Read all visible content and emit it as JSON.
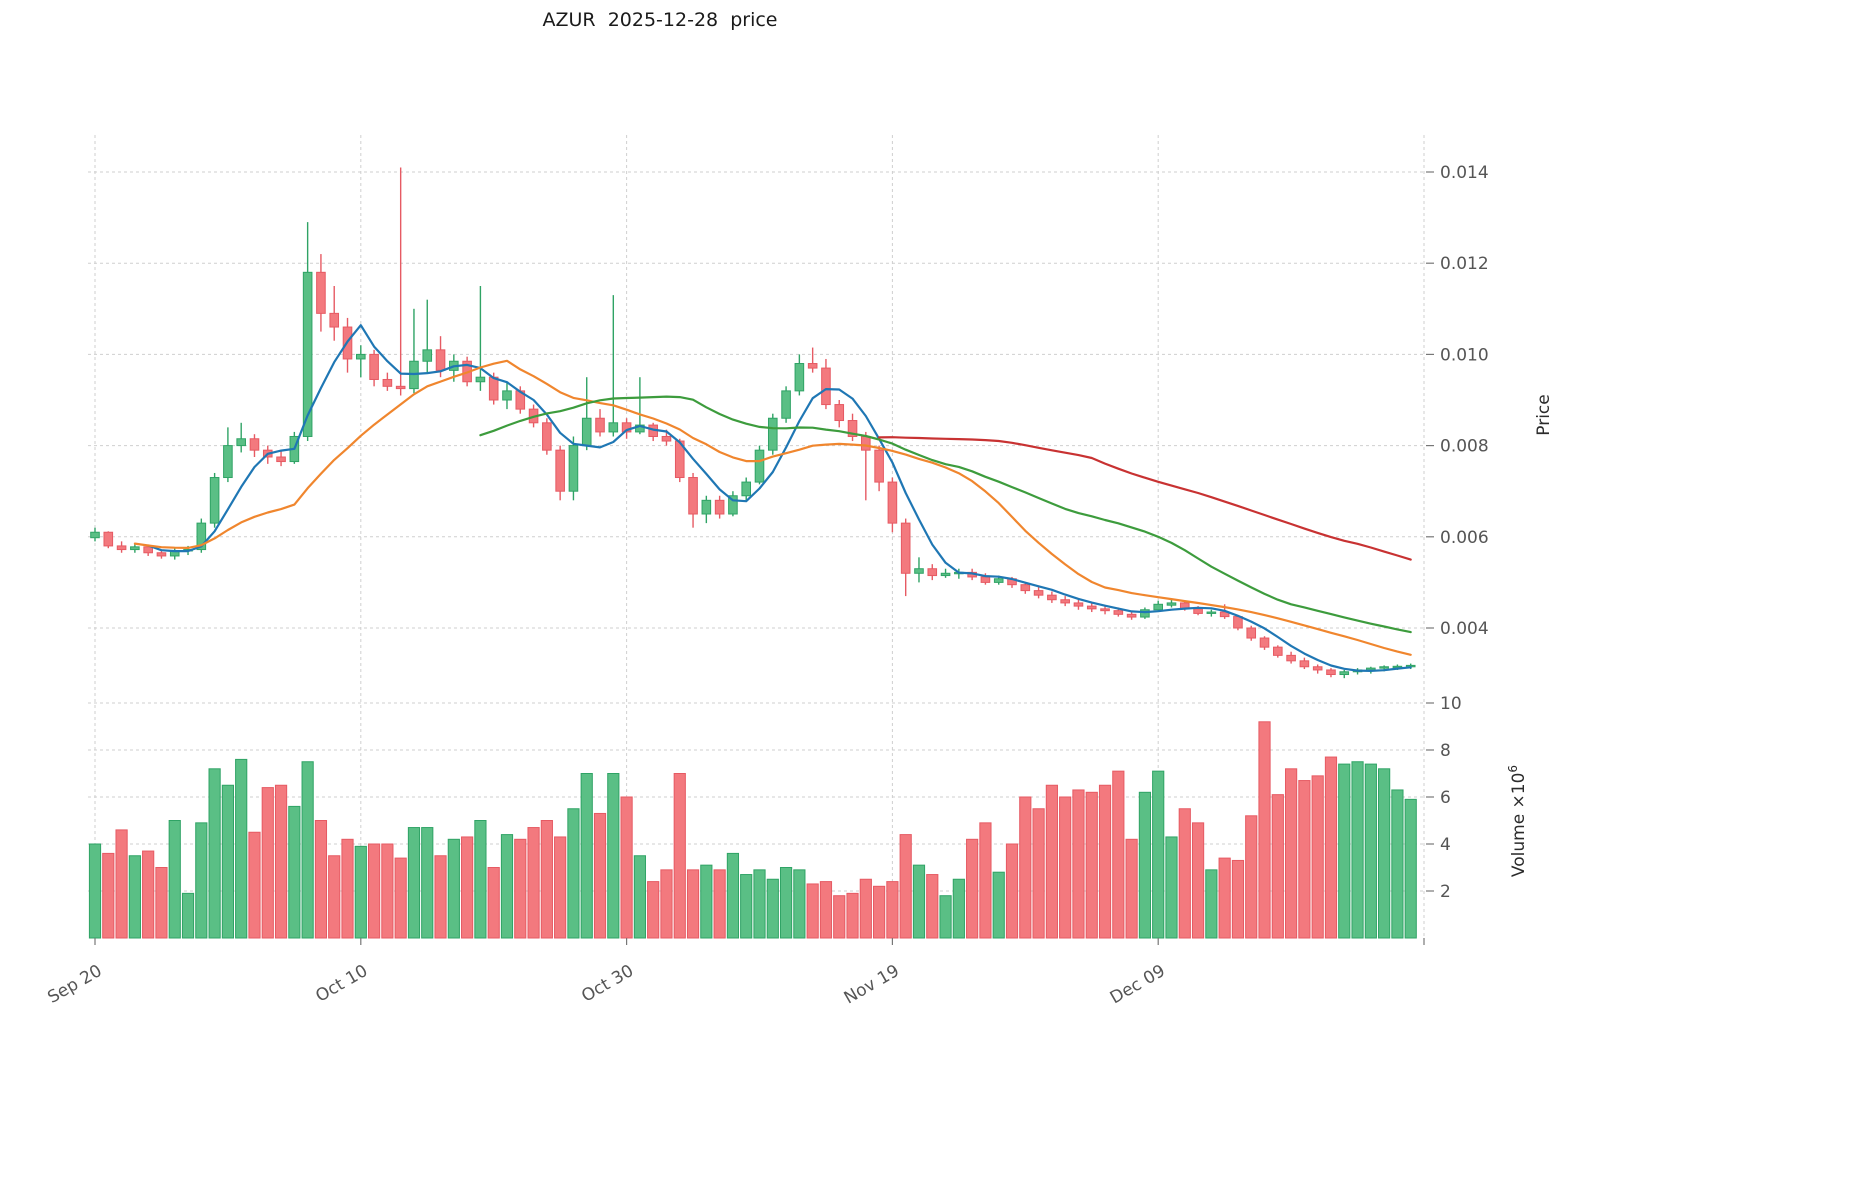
{
  "chart": {
    "title": "AZUR  2025-12-28  price"
  },
  "axes": {
    "price": {
      "label": "Price",
      "ticks": [
        0.004,
        0.006,
        0.008,
        0.01,
        0.012,
        0.014
      ],
      "tick_labels": [
        "0.004",
        "0.006",
        "0.008",
        "0.010",
        "0.012",
        "0.014"
      ]
    },
    "volume": {
      "label_text": "Volume ×10",
      "label_sup": "6",
      "ticks": [
        2,
        4,
        6,
        8,
        10
      ],
      "tick_labels": [
        "2",
        "4",
        "6",
        "8",
        "10"
      ]
    },
    "x": {
      "tick_indices": [
        0,
        20,
        40,
        60,
        80,
        100
      ],
      "tick_labels": [
        "Sep 20",
        "Oct 10",
        "Oct 30",
        "Nov 19",
        "Dec 09",
        ""
      ]
    }
  },
  "chart_data": {
    "type": "candlestick",
    "symbol": "AZUR",
    "date_range": [
      "Sep 20",
      "Dec 28"
    ],
    "price_ylim": [
      0.00264,
      0.01481
    ],
    "volume_ylim": [
      0,
      10.2
    ],
    "volume_unit": "1e6",
    "grid": true,
    "open": [
      0.00598,
      0.0061,
      0.0058,
      0.00572,
      0.00578,
      0.00565,
      0.00558,
      0.0057,
      0.00572,
      0.0063,
      0.0073,
      0.008,
      0.00815,
      0.0079,
      0.00775,
      0.00765,
      0.0082,
      0.0118,
      0.0109,
      0.0106,
      0.0099,
      0.01,
      0.00945,
      0.0093,
      0.00925,
      0.00985,
      0.0101,
      0.00965,
      0.00985,
      0.0094,
      0.0095,
      0.009,
      0.0092,
      0.0088,
      0.0085,
      0.0079,
      0.007,
      0.008,
      0.0086,
      0.0083,
      0.0085,
      0.0083,
      0.00845,
      0.0082,
      0.0081,
      0.0073,
      0.0065,
      0.0068,
      0.0065,
      0.0069,
      0.0072,
      0.0079,
      0.0086,
      0.0092,
      0.0098,
      0.0097,
      0.0089,
      0.00855,
      0.0082,
      0.0079,
      0.0072,
      0.0063,
      0.0052,
      0.0053,
      0.00515,
      0.0052,
      0.00522,
      0.00512,
      0.005,
      0.00508,
      0.00495,
      0.00482,
      0.00472,
      0.00462,
      0.00455,
      0.00448,
      0.00442,
      0.00438,
      0.0043,
      0.00424,
      0.0044,
      0.0045,
      0.00455,
      0.00442,
      0.00432,
      0.00435,
      0.00425,
      0.004,
      0.00378,
      0.00358,
      0.0034,
      0.00328,
      0.00315,
      0.00308,
      0.00298,
      0.00304,
      0.00308,
      0.00312,
      0.00315,
      0.00316
    ],
    "high": [
      0.0062,
      0.00612,
      0.0059,
      0.00585,
      0.0058,
      0.00572,
      0.00575,
      0.0058,
      0.0064,
      0.0074,
      0.0084,
      0.0085,
      0.00825,
      0.008,
      0.0079,
      0.0083,
      0.0129,
      0.0122,
      0.0115,
      0.0108,
      0.0102,
      0.0101,
      0.0096,
      0.0141,
      0.011,
      0.0112,
      0.0104,
      0.01,
      0.00995,
      0.0115,
      0.0096,
      0.0094,
      0.0093,
      0.0089,
      0.0086,
      0.008,
      0.0082,
      0.0095,
      0.0088,
      0.0113,
      0.0086,
      0.0095,
      0.0085,
      0.00835,
      0.00815,
      0.0074,
      0.0069,
      0.0069,
      0.007,
      0.0073,
      0.008,
      0.0087,
      0.0093,
      0.01,
      0.01015,
      0.0099,
      0.009,
      0.0087,
      0.0083,
      0.008,
      0.0073,
      0.0064,
      0.00555,
      0.0054,
      0.0053,
      0.0053,
      0.0053,
      0.0052,
      0.00515,
      0.00512,
      0.005,
      0.0049,
      0.0048,
      0.0047,
      0.00462,
      0.00455,
      0.0045,
      0.00445,
      0.00438,
      0.00445,
      0.0046,
      0.00462,
      0.00458,
      0.00448,
      0.0044,
      0.00452,
      0.00428,
      0.00405,
      0.00382,
      0.00362,
      0.00348,
      0.00335,
      0.0032,
      0.00312,
      0.00308,
      0.00312,
      0.00315,
      0.00318,
      0.0032,
      0.00322
    ],
    "low": [
      0.0059,
      0.00575,
      0.00565,
      0.00565,
      0.00558,
      0.00552,
      0.0055,
      0.0056,
      0.00565,
      0.0062,
      0.0072,
      0.00785,
      0.00775,
      0.0076,
      0.00755,
      0.0076,
      0.0081,
      0.0105,
      0.0103,
      0.0096,
      0.0095,
      0.0093,
      0.0092,
      0.0091,
      0.00915,
      0.0096,
      0.0095,
      0.0094,
      0.0093,
      0.0092,
      0.0089,
      0.0088,
      0.0087,
      0.0084,
      0.0078,
      0.0068,
      0.0068,
      0.0079,
      0.0082,
      0.0082,
      0.00815,
      0.00825,
      0.0081,
      0.008,
      0.0072,
      0.0062,
      0.0063,
      0.0064,
      0.00645,
      0.0068,
      0.00715,
      0.0078,
      0.0085,
      0.0091,
      0.0096,
      0.0088,
      0.0084,
      0.0081,
      0.0068,
      0.007,
      0.0061,
      0.0047,
      0.005,
      0.00505,
      0.0051,
      0.00508,
      0.00505,
      0.00495,
      0.00495,
      0.00488,
      0.00475,
      0.00465,
      0.00455,
      0.00448,
      0.0044,
      0.00435,
      0.0043,
      0.00425,
      0.00418,
      0.0042,
      0.00435,
      0.00445,
      0.00438,
      0.00428,
      0.00425,
      0.0042,
      0.00395,
      0.00372,
      0.00352,
      0.00335,
      0.00322,
      0.0031,
      0.003,
      0.00292,
      0.0029,
      0.00298,
      0.003,
      0.00305,
      0.00308,
      0.0031
    ],
    "close": [
      0.0061,
      0.0058,
      0.00572,
      0.00578,
      0.00565,
      0.00558,
      0.0057,
      0.00572,
      0.0063,
      0.0073,
      0.008,
      0.00815,
      0.0079,
      0.00775,
      0.00765,
      0.0082,
      0.0118,
      0.0109,
      0.0106,
      0.0099,
      0.01,
      0.00945,
      0.0093,
      0.00925,
      0.00985,
      0.0101,
      0.00965,
      0.00985,
      0.0094,
      0.0095,
      0.009,
      0.0092,
      0.0088,
      0.0085,
      0.0079,
      0.007,
      0.008,
      0.0086,
      0.0083,
      0.0085,
      0.0083,
      0.00845,
      0.0082,
      0.0081,
      0.0073,
      0.0065,
      0.0068,
      0.0065,
      0.0069,
      0.0072,
      0.0079,
      0.0086,
      0.0092,
      0.0098,
      0.0097,
      0.0089,
      0.00855,
      0.0082,
      0.0079,
      0.0072,
      0.0063,
      0.0052,
      0.0053,
      0.00515,
      0.0052,
      0.00522,
      0.00512,
      0.005,
      0.00508,
      0.00495,
      0.00482,
      0.00472,
      0.00462,
      0.00455,
      0.00448,
      0.00442,
      0.00438,
      0.0043,
      0.00424,
      0.0044,
      0.00452,
      0.00455,
      0.00442,
      0.00432,
      0.00435,
      0.00425,
      0.004,
      0.00378,
      0.00358,
      0.0034,
      0.00328,
      0.00315,
      0.00308,
      0.00298,
      0.00304,
      0.00308,
      0.00312,
      0.00315,
      0.00316,
      0.00318
    ],
    "volume": [
      4.0,
      3.6,
      4.6,
      3.5,
      3.7,
      3.0,
      5.0,
      1.9,
      4.9,
      7.2,
      6.5,
      7.6,
      4.5,
      6.4,
      6.5,
      5.6,
      7.5,
      5.0,
      3.5,
      4.2,
      3.9,
      4.0,
      4.0,
      3.4,
      4.7,
      4.7,
      3.5,
      4.2,
      4.3,
      5.0,
      3.0,
      4.4,
      4.2,
      4.7,
      5.0,
      4.3,
      5.5,
      7.0,
      5.3,
      7.0,
      6.0,
      3.5,
      2.4,
      2.9,
      7.0,
      2.9,
      3.1,
      2.9,
      3.6,
      2.7,
      2.9,
      2.5,
      3.0,
      2.9,
      2.3,
      2.4,
      1.8,
      1.9,
      2.5,
      2.2,
      2.4,
      4.4,
      3.1,
      2.7,
      1.8,
      2.5,
      4.2,
      4.9,
      2.8,
      4.0,
      6.0,
      5.5,
      6.5,
      6.0,
      6.3,
      6.2,
      6.5,
      7.1,
      4.2,
      6.2,
      7.1,
      4.3,
      5.5,
      4.9,
      2.9,
      3.4,
      3.3,
      5.2,
      9.2,
      6.1,
      7.2,
      6.7,
      6.9,
      7.7,
      7.4,
      7.5,
      7.4,
      7.2,
      6.3,
      5.9
    ],
    "indicators": [
      {
        "name": "ma-fast",
        "type": "sma",
        "window": 5,
        "min_periods": 5,
        "color": "#1f77b4"
      },
      {
        "name": "ma-medium",
        "type": "sma",
        "window": 16,
        "min_periods": 4,
        "color": "#f0862e"
      },
      {
        "name": "ma-slow",
        "type": "sma",
        "window": 30,
        "min_periods": 30,
        "color": "#3d9c3d"
      },
      {
        "name": "ma-very-slow",
        "type": "sma",
        "window": 60,
        "min_periods": 60,
        "color": "#c83232"
      }
    ],
    "colors": {
      "up": "#5abf85",
      "up_edge": "#2fa365",
      "down": "#f3797e",
      "down_edge": "#e65a63",
      "grid": "#cfcfcf",
      "tick_text": "#555555",
      "axis_label_text": "#2b2b2b"
    }
  }
}
